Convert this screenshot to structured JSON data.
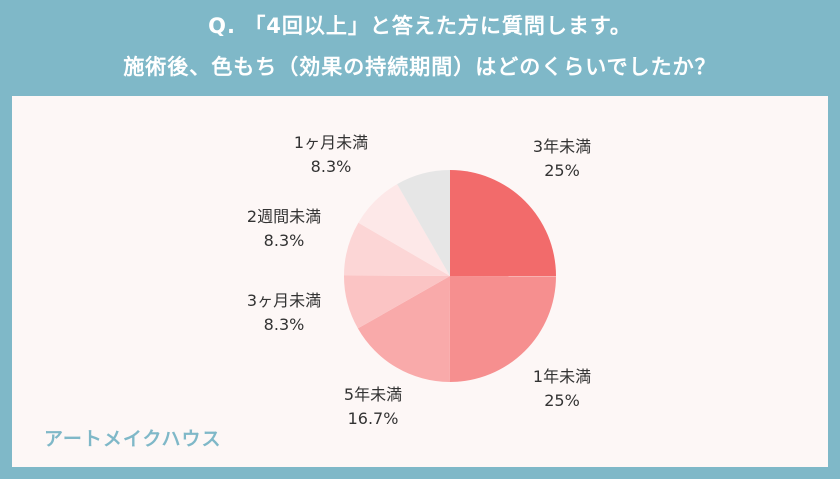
{
  "header": {
    "line1": "Q. 「4回以上」と答えた方に質問します。",
    "line2": "施術後、色もち（効果の持続期間）はどのくらいでしたか？"
  },
  "brand": "アートメイクハウス",
  "chart_data": {
    "type": "pie",
    "title": "",
    "slices": [
      {
        "label": "3年未満",
        "value": 25,
        "value_label": "25%",
        "color": "#f26b6b"
      },
      {
        "label": "1年未満",
        "value": 25,
        "value_label": "25%",
        "color": "#f68f8f"
      },
      {
        "label": "5年未満",
        "value": 16.7,
        "value_label": "16.7%",
        "color": "#f9aaaa"
      },
      {
        "label": "3ヶ月未満",
        "value": 8.3,
        "value_label": "8.3%",
        "color": "#fbc4c4"
      },
      {
        "label": "2週間未満",
        "value": 8.3,
        "value_label": "8.3%",
        "color": "#fcd6d6"
      },
      {
        "label": "1ヶ月未満",
        "value": 8.3,
        "value_label": "8.3%",
        "color": "#fde8e8"
      },
      {
        "label": "",
        "value": 8.3,
        "value_label": "",
        "color": "#e6e6e6"
      }
    ],
    "start_angle": "12 o'clock",
    "direction": "clockwise",
    "legend": "none"
  }
}
